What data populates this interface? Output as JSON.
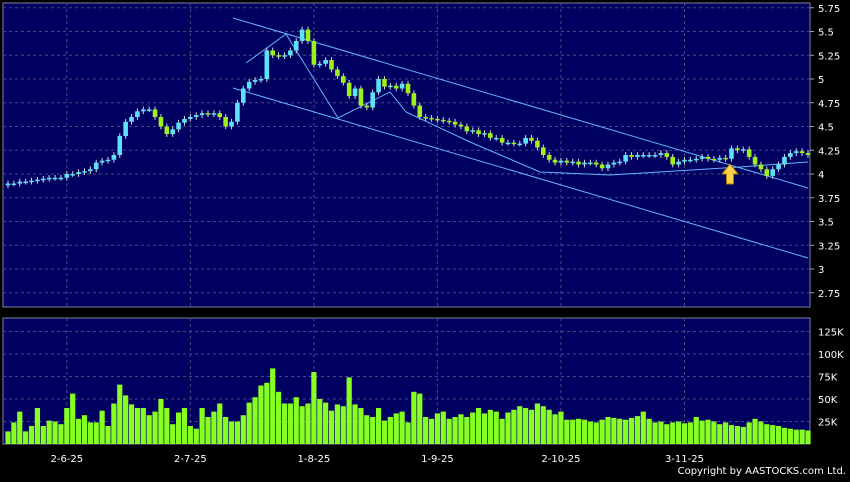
{
  "copyright": "Copyright by AASTOCKS.com Ltd.",
  "colors": {
    "background": "#000000",
    "panel": "#000060",
    "grid": "#4a4a80",
    "up_candle": "#5ce1ff",
    "down_candle": "#9ef01a",
    "wick": "#d9d9d9",
    "volume": "#88ff22",
    "trendline": "#64b4ff",
    "arrow": "#ffd24a",
    "text": "#ffffff"
  },
  "icons": {
    "signal_marker": "up-arrow-icon"
  },
  "chart_data": [
    {
      "type": "candlestick",
      "y_tick_labels": [
        "5.75",
        "5.5",
        "5.25",
        "5",
        "4.75",
        "4.5",
        "4.25",
        "4",
        "3.75",
        "3.5",
        "3.25",
        "3",
        "2.75"
      ],
      "ylim": [
        2.6,
        5.8
      ],
      "x_tick_labels": [
        "2-6-25",
        "2-7-25",
        "1-8-25",
        "1-9-25",
        "2-10-25",
        "3-11-25"
      ],
      "x_tick_positions": [
        10,
        31,
        52,
        73,
        94,
        115
      ],
      "n_points": 137,
      "grid": true,
      "close": [
        3.9,
        3.9,
        3.92,
        3.92,
        3.93,
        3.94,
        3.95,
        3.96,
        3.96,
        3.96,
        4.0,
        4.0,
        4.02,
        4.03,
        4.05,
        4.12,
        4.14,
        4.15,
        4.2,
        4.4,
        4.55,
        4.6,
        4.66,
        4.68,
        4.68,
        4.6,
        4.5,
        4.42,
        4.47,
        4.54,
        4.58,
        4.6,
        4.62,
        4.64,
        4.63,
        4.64,
        4.6,
        4.5,
        4.55,
        4.75,
        4.9,
        4.97,
        4.99,
        5.0,
        5.3,
        5.25,
        5.24,
        5.25,
        5.3,
        5.4,
        5.52,
        5.4,
        5.15,
        5.16,
        5.2,
        5.1,
        5.03,
        4.96,
        4.82,
        4.9,
        4.72,
        4.7,
        4.86,
        5.0,
        4.92,
        4.93,
        4.9,
        4.95,
        4.85,
        4.72,
        4.6,
        4.59,
        4.58,
        4.57,
        4.56,
        4.55,
        4.52,
        4.5,
        4.45,
        4.46,
        4.42,
        4.43,
        4.38,
        4.38,
        4.33,
        4.33,
        4.32,
        4.32,
        4.38,
        4.35,
        4.28,
        4.2,
        4.15,
        4.12,
        4.14,
        4.12,
        4.13,
        4.1,
        4.12,
        4.12,
        4.1,
        4.06,
        4.1,
        4.12,
        4.13,
        4.2,
        4.18,
        4.2,
        4.2,
        4.2,
        4.2,
        4.22,
        4.18,
        4.1,
        4.13,
        4.15,
        4.15,
        4.16,
        4.18,
        4.16,
        4.15,
        4.17,
        4.16,
        4.27,
        4.25,
        4.26,
        4.18,
        4.1,
        4.05,
        3.98,
        4.05,
        4.1,
        4.18,
        4.22,
        4.24,
        4.22,
        4.2
      ],
      "volume": [
        14,
        24,
        36,
        14,
        20,
        40,
        20,
        26,
        25,
        22,
        40,
        56,
        28,
        32,
        24,
        24,
        37,
        20,
        45,
        66,
        54,
        44,
        40,
        40,
        32,
        36,
        50,
        40,
        22,
        35,
        40,
        20,
        17,
        40,
        30,
        36,
        45,
        30,
        25,
        25,
        32,
        46,
        52,
        65,
        68,
        84,
        58,
        45,
        45,
        52,
        42,
        45,
        80,
        50,
        46,
        37,
        44,
        42,
        74,
        44,
        40,
        32,
        30,
        40,
        26,
        30,
        34,
        36,
        24,
        58,
        56,
        30,
        28,
        34,
        36,
        28,
        30,
        33,
        30,
        35,
        40,
        34,
        38,
        36,
        28,
        35,
        38,
        42,
        40,
        38,
        45,
        42,
        38,
        33,
        36,
        27,
        27,
        28,
        27,
        25,
        24,
        27,
        30,
        29,
        28,
        27,
        29,
        31,
        36,
        28,
        24,
        25,
        22,
        24,
        25,
        23,
        24,
        30,
        26,
        27,
        25,
        22,
        24,
        21,
        20,
        19,
        24,
        28,
        25,
        22,
        21,
        20,
        18,
        17,
        16,
        16,
        15
      ]
    }
  ]
}
